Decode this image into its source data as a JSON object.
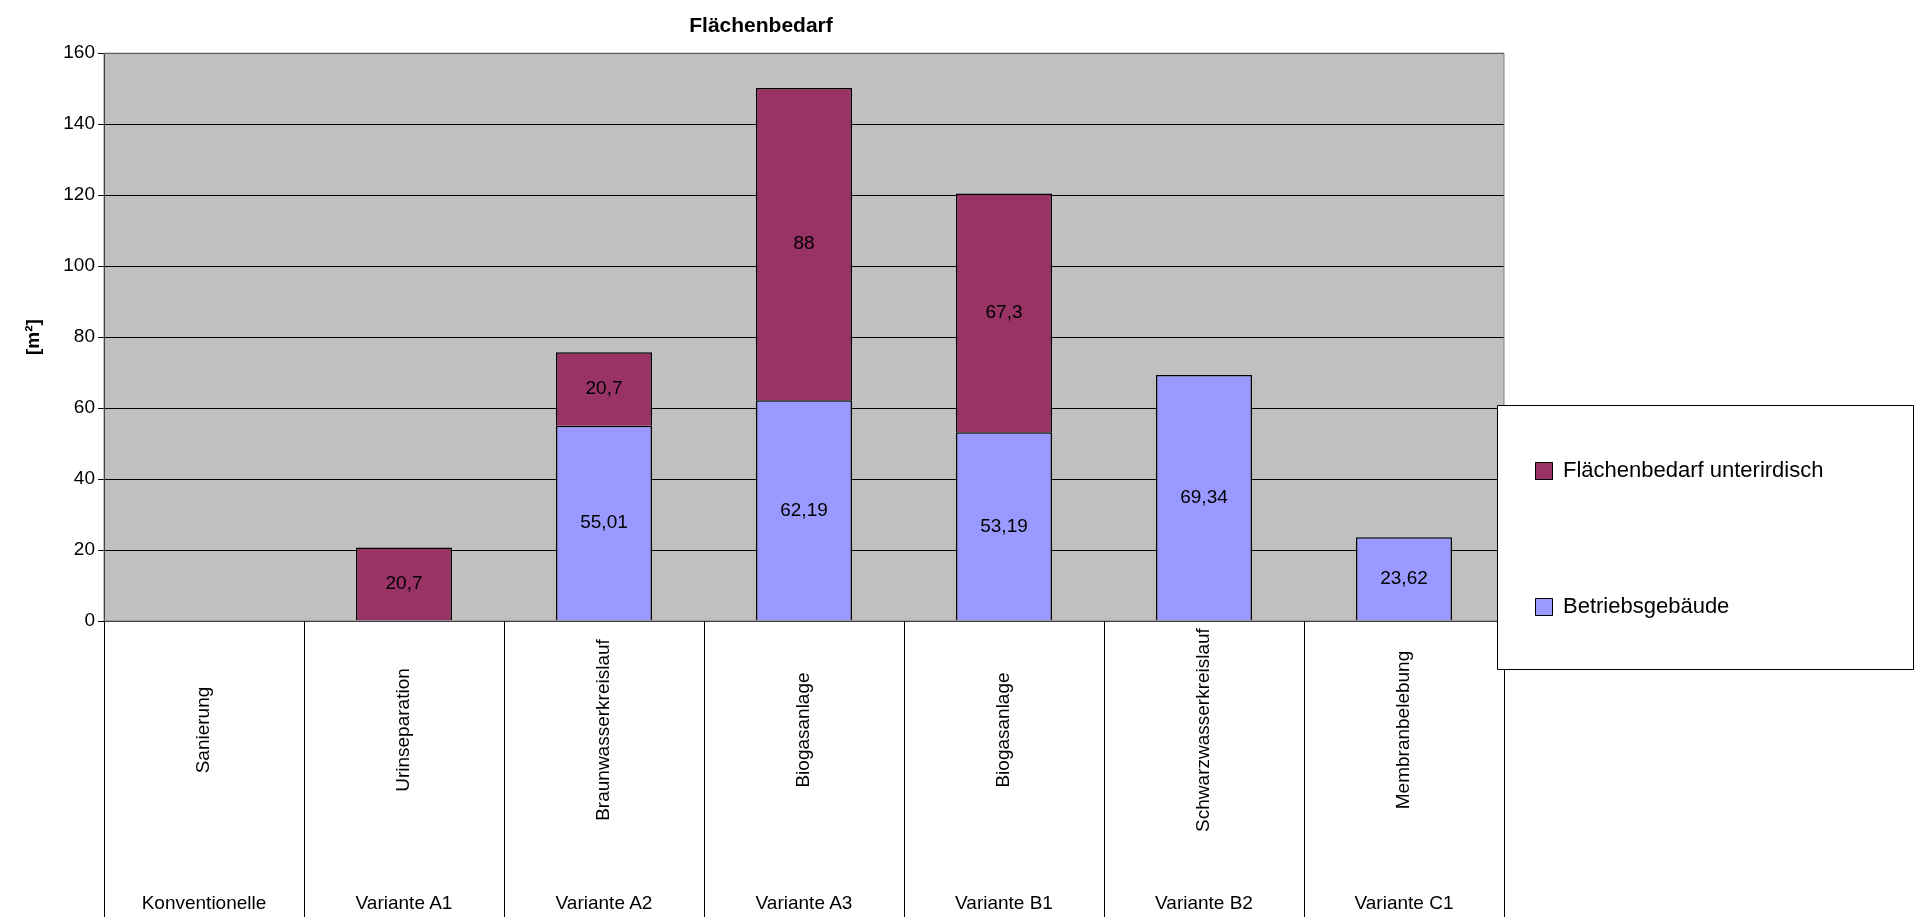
{
  "chart_data": {
    "type": "bar",
    "title": "Flächenbedarf",
    "ylabel": "[m²]",
    "categories": [
      "Konventionelle\nSanierung",
      "Variante A1\nUrinseparation",
      "Variante A2\nBraunwasserkreislauf",
      "Variante A3\nBiogasanlage",
      "Variante B1\nBiogasanlage",
      "Variante B2\nSchwarzwasserkreislauf",
      "Variante C1\nMembranbelebung"
    ],
    "stacked": true,
    "series": [
      {
        "name": "Betriebsgebäude",
        "color": "#9999ff",
        "values": [
          null,
          null,
          55.01,
          62.19,
          53.19,
          69.34,
          23.62
        ],
        "value_labels": [
          null,
          null,
          "55,01",
          "62,19",
          "53,19",
          "69,34",
          "23,62"
        ]
      },
      {
        "name": "Flächenbedarf unterirdisch",
        "color": "#993366",
        "values": [
          null,
          20.7,
          20.7,
          88,
          67.3,
          null,
          null
        ],
        "value_labels": [
          null,
          "20,7",
          "20,7",
          "88",
          "67,3",
          null,
          null
        ]
      }
    ],
    "ylim": [
      0,
      160
    ],
    "yticks": [
      0,
      20,
      40,
      60,
      80,
      100,
      120,
      140,
      160
    ],
    "grid": "y",
    "legend": "right"
  }
}
